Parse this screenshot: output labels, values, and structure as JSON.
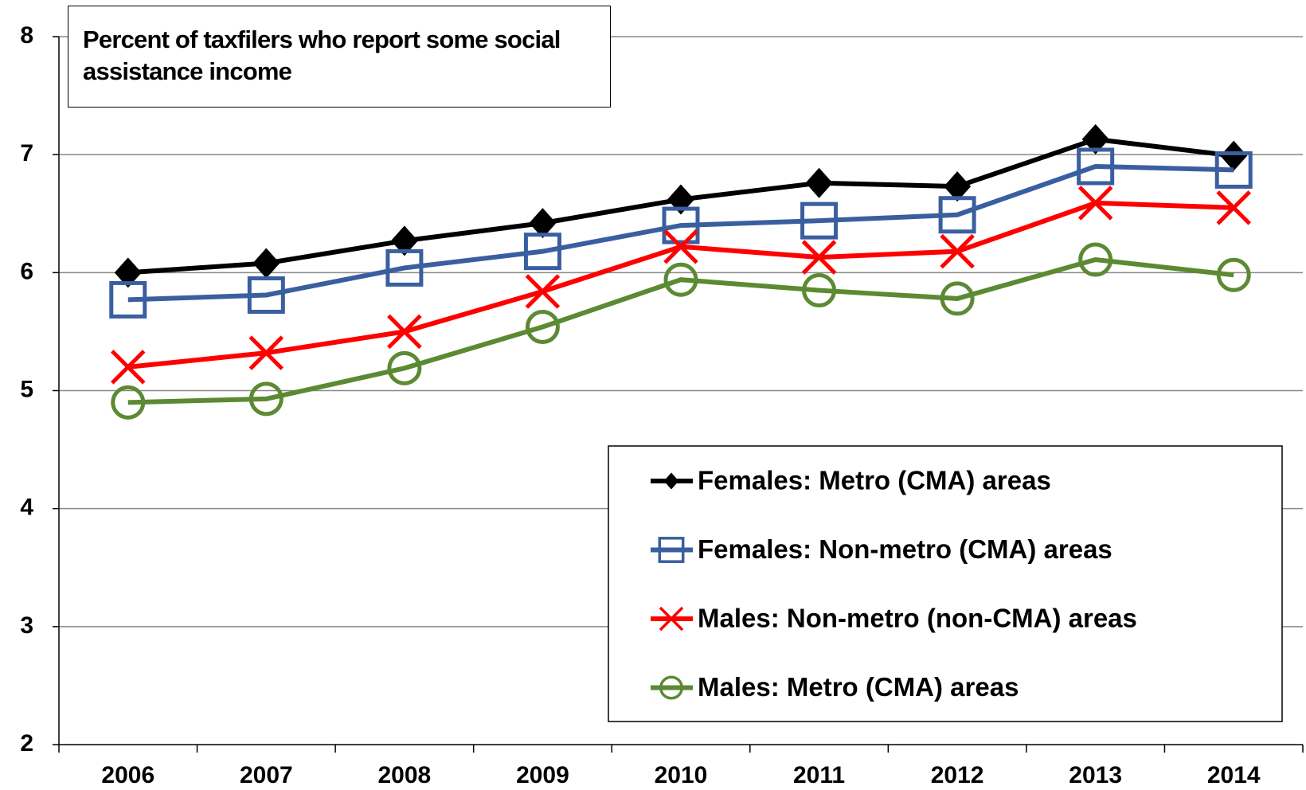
{
  "chart_data": {
    "type": "line",
    "title": "Percent of taxfilers who report some social assistance income",
    "categories": [
      "2006",
      "2007",
      "2008",
      "2009",
      "2010",
      "2011",
      "2012",
      "2013",
      "2014"
    ],
    "series": [
      {
        "name": "Females: Metro (CMA) areas",
        "color": "#000000",
        "marker": "diamond",
        "values": [
          6.0,
          6.08,
          6.27,
          6.42,
          6.62,
          6.76,
          6.73,
          7.13,
          6.99
        ]
      },
      {
        "name": "Females: Non-metro (CMA) areas",
        "color": "#3a5fa0",
        "marker": "square",
        "values": [
          5.77,
          5.81,
          6.04,
          6.18,
          6.4,
          6.44,
          6.49,
          6.9,
          6.87
        ]
      },
      {
        "name": "Males: Non-metro (non-CMA) areas",
        "color": "#ff0000",
        "marker": "x",
        "values": [
          5.2,
          5.32,
          5.5,
          5.84,
          6.22,
          6.13,
          6.18,
          6.59,
          6.55
        ]
      },
      {
        "name": "Males: Metro (CMA) areas",
        "color": "#5b8a32",
        "marker": "circle",
        "values": [
          4.9,
          4.93,
          5.19,
          5.54,
          5.94,
          5.85,
          5.78,
          6.11,
          5.98
        ]
      }
    ],
    "ylim": [
      2,
      8
    ],
    "yticks": [
      2,
      3,
      4,
      5,
      6,
      7,
      8
    ],
    "grid": true
  }
}
